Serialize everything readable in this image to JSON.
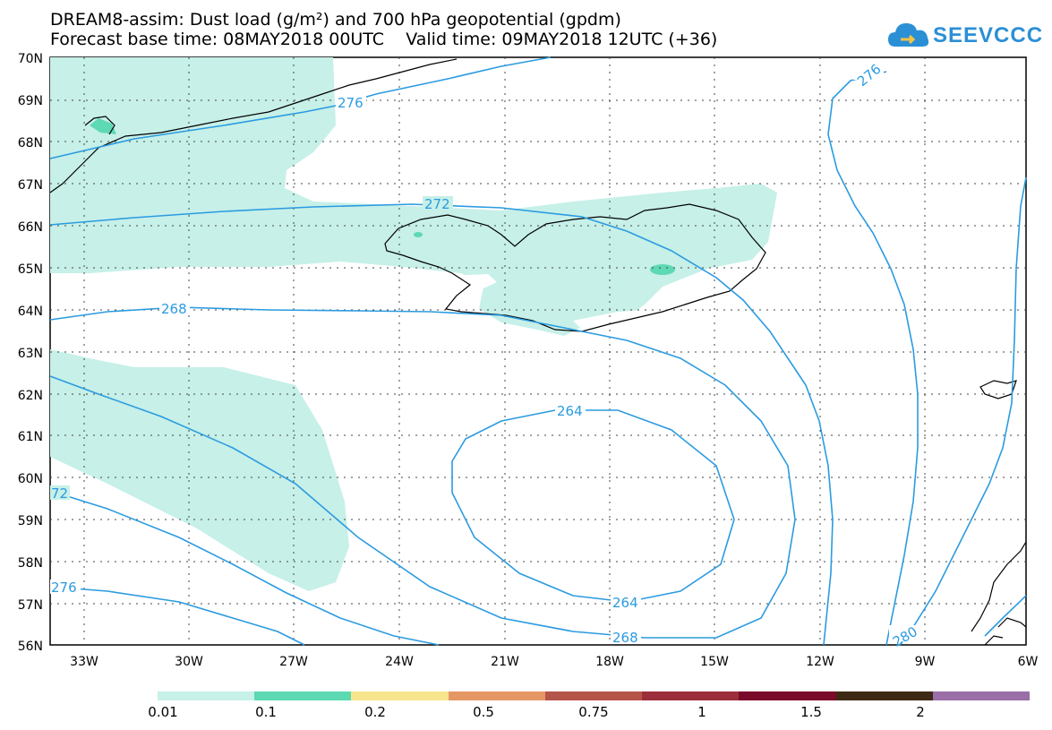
{
  "title": {
    "line1": "DREAM8-assim: Dust load (g/m²) and 700 hPa geopotential (gpdm)",
    "line2": "Forecast base time: 08MAY2018 00UTC    Valid time: 09MAY2018 12UTC (+36)"
  },
  "logo": {
    "text": "SEEVCCC"
  },
  "map": {
    "lat_labels": [
      "70N",
      "69N",
      "68N",
      "67N",
      "66N",
      "65N",
      "64N",
      "63N",
      "62N",
      "61N",
      "60N",
      "59N",
      "58N",
      "57N",
      "56N"
    ],
    "lon_labels": [
      "33W",
      "30W",
      "27W",
      "24W",
      "21W",
      "18W",
      "15W",
      "12W",
      "9W",
      "6W"
    ],
    "contour_labels": {
      "c276_top": "276",
      "c276_right": "276",
      "c272": "272",
      "c268_left": "268",
      "c264_top": "264",
      "c264_bottom": "264",
      "c268_bottom": "268",
      "c72_left": "72",
      "c276_left": "276",
      "c280": "280"
    }
  },
  "colorbar": {
    "colors": [
      "#c6f0e8",
      "#5dd9b3",
      "#f6e58d",
      "#e59866",
      "#b5554a",
      "#9b2e3a",
      "#7a0a2a",
      "#3e2a14",
      "#9a6fa8"
    ],
    "labels": [
      "0.01",
      "0.1",
      "0.2",
      "0.5",
      "0.75",
      "1",
      "1.5",
      "2"
    ]
  }
}
